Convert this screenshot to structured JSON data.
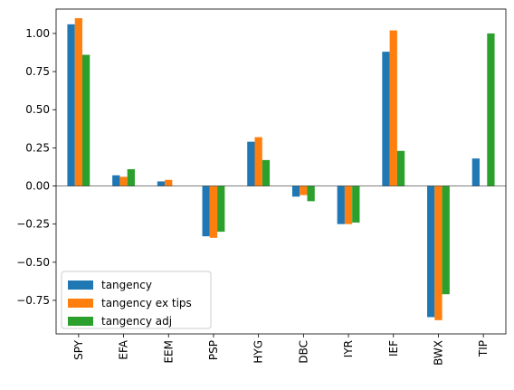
{
  "chart_data": {
    "type": "bar",
    "categories": [
      "SPY",
      "EFA",
      "EEM",
      "PSP",
      "HYG",
      "DBC",
      "IYR",
      "IEF",
      "BWX",
      "TIP"
    ],
    "series": [
      {
        "name": "tangency",
        "color": "#1f77b4",
        "values": [
          1.06,
          0.07,
          0.03,
          -0.33,
          0.29,
          -0.07,
          -0.25,
          0.88,
          -0.86,
          0.18
        ]
      },
      {
        "name": "tangency ex tips",
        "color": "#ff7f0e",
        "values": [
          1.1,
          0.06,
          0.04,
          -0.34,
          0.32,
          -0.06,
          -0.25,
          1.02,
          -0.88,
          0.0
        ]
      },
      {
        "name": "tangency adj",
        "color": "#2ca02c",
        "values": [
          0.86,
          0.11,
          0.0,
          -0.3,
          0.17,
          -0.1,
          -0.24,
          0.23,
          -0.71,
          1.0
        ]
      }
    ],
    "yticks": [
      {
        "value": -0.75,
        "label": "−0.75"
      },
      {
        "value": -0.5,
        "label": "−0.50"
      },
      {
        "value": -0.25,
        "label": "−0.25"
      },
      {
        "value": 0,
        "label": "0.00"
      },
      {
        "value": 0.25,
        "label": "0.25"
      },
      {
        "value": 0.5,
        "label": "0.50"
      },
      {
        "value": 0.75,
        "label": "0.75"
      },
      {
        "value": 1.0,
        "label": "1.00"
      }
    ],
    "ylim": [
      -0.97,
      1.16
    ],
    "xlabel_rotation": "vertical",
    "legend_position": "lower-left",
    "grid": false
  }
}
